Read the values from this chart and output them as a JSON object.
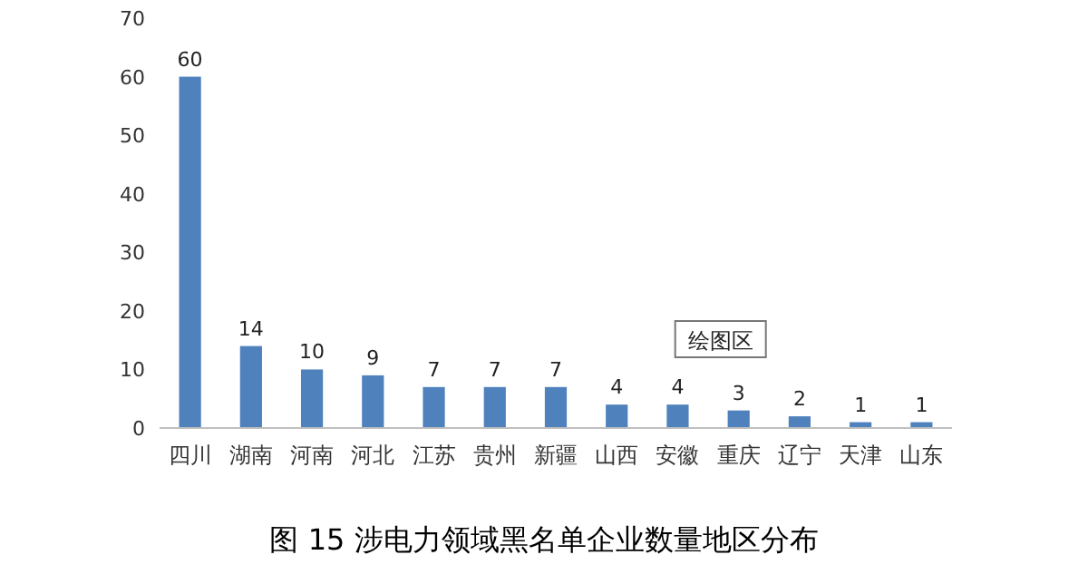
{
  "chart_data": {
    "type": "bar",
    "title": "图 15   涉电力领域黑名单企业数量地区分布",
    "categories": [
      "四川",
      "湖南",
      "河南",
      "河北",
      "江苏",
      "贵州",
      "新疆",
      "山西",
      "安徽",
      "重庆",
      "辽宁",
      "天津",
      "山东"
    ],
    "values": [
      60,
      14,
      10,
      9,
      7,
      7,
      7,
      4,
      4,
      3,
      2,
      1,
      1
    ],
    "color": "#4f81bd",
    "ylim": [
      0,
      70
    ],
    "yticks": [
      0,
      10,
      20,
      30,
      40,
      50,
      60,
      70
    ],
    "grid": false,
    "data_labels": true,
    "annotations": [
      "绘图区"
    ]
  }
}
